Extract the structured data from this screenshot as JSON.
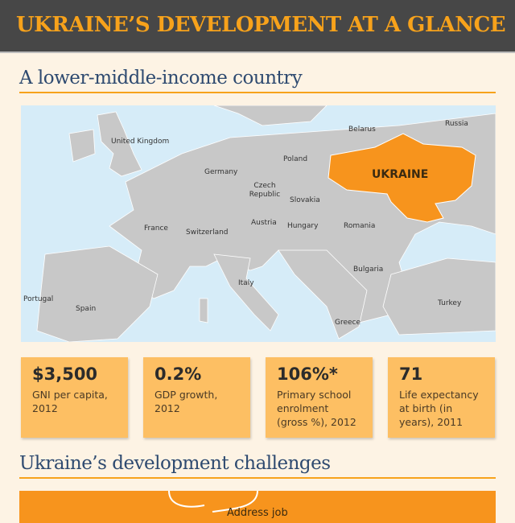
{
  "title": "UKRAINE’S DEVELOPMENT AT A GLANCE",
  "section1": {
    "heading": "A lower-middle-income country"
  },
  "map": {
    "highlight": "UKRAINE",
    "highlight_color": "#f7941d",
    "land_color": "#c8c8c8",
    "water_color": "#d6ecf8",
    "labels": {
      "uk": "United Kingdom",
      "belarus": "Belarus",
      "russia": "Russia",
      "poland": "Poland",
      "germany": "Germany",
      "czech": "Czech Republic",
      "slovakia": "Slovakia",
      "france": "France",
      "switzerland": "Switzerland",
      "austria": "Austria",
      "hungary": "Hungary",
      "romania": "Romania",
      "italy": "Italy",
      "bulgaria": "Bulgaria",
      "portugal": "Portugal",
      "spain": "Spain",
      "turkey": "Turkey",
      "greece": "Greece"
    }
  },
  "stats": [
    {
      "value": "$3,500",
      "label": "GNI per capita, 2012"
    },
    {
      "value": "0.2%",
      "label": "GDP growth, 2012"
    },
    {
      "value": "106%*",
      "label": "Primary school enrolment (gross %), 2012"
    },
    {
      "value": "71",
      "label": "Life expectancy at birth (in years), 2011"
    }
  ],
  "section2": {
    "heading": "Ukraine’s development challenges",
    "first_item": "Address job"
  }
}
